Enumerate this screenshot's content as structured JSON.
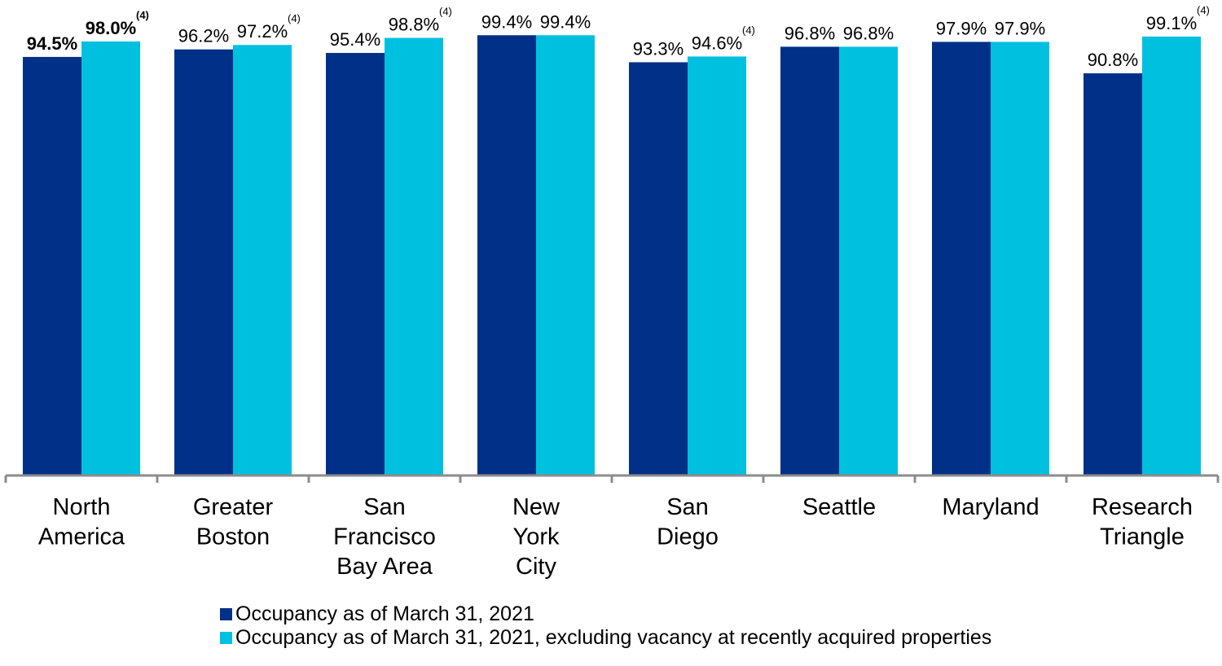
{
  "chart_data": {
    "type": "bar",
    "categories": [
      [
        "North",
        "America"
      ],
      [
        "Greater",
        "Boston"
      ],
      [
        "San",
        "Francisco",
        "Bay Area"
      ],
      [
        "New",
        "York",
        "City"
      ],
      [
        "San",
        "Diego"
      ],
      [
        "Seattle"
      ],
      [
        "Maryland"
      ],
      [
        "Research",
        "Triangle"
      ]
    ],
    "series": [
      {
        "name": "Occupancy as of March 31, 2021",
        "color": "#003087",
        "values": [
          94.5,
          96.2,
          95.4,
          99.4,
          93.3,
          96.8,
          97.9,
          90.8
        ],
        "labels": [
          "94.5%",
          "96.2%",
          "95.4%",
          "99.4%",
          "93.3%",
          "96.8%",
          "97.9%",
          "90.8%"
        ]
      },
      {
        "name": "Occupancy as of March 31, 2021, excluding vacancy at recently acquired properties",
        "color": "#00C0E0",
        "values": [
          98.0,
          97.2,
          98.8,
          99.4,
          94.6,
          96.8,
          97.9,
          99.1
        ],
        "labels": [
          "98.0%",
          "97.2%",
          "98.8%",
          "99.4%",
          "94.6%",
          "96.8%",
          "97.9%",
          "99.1%"
        ]
      }
    ],
    "footnotes": [
      "(4)",
      "(4)",
      "(4)",
      "",
      "(4)",
      "",
      "",
      "(4)"
    ],
    "bold_category": 0,
    "title": "",
    "xlabel": "",
    "ylabel": "",
    "ylim": [
      0,
      100
    ],
    "grid": false,
    "legend_position": "bottom"
  }
}
